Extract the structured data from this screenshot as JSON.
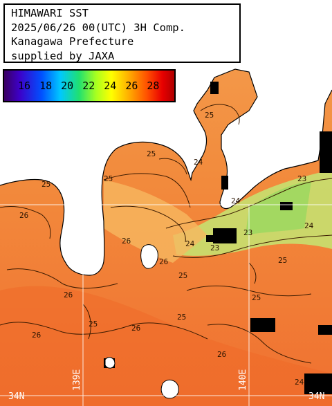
{
  "title": {
    "line1": "HIMAWARI SST",
    "line2": "2025/06/26 00(UTC) 3H Comp.",
    "line3": "Kanagawa Prefecture",
    "line4": "supplied by JAXA"
  },
  "color_scale": {
    "ticks": [
      "16",
      "18",
      "20",
      "22",
      "24",
      "26",
      "28"
    ],
    "colors": [
      "#3a0060",
      "#3d00c8",
      "#0050ff",
      "#00c8ff",
      "#20e070",
      "#a8ff20",
      "#ffff00",
      "#ffb000",
      "#ff5000",
      "#e80000",
      "#b00000"
    ]
  },
  "graticule": {
    "lat_left": "34N",
    "lat_right": "34N",
    "lon_left": "139E",
    "lon_right": "140E"
  },
  "contour_labels": [
    "25",
    "26",
    "25",
    "25",
    "26",
    "26",
    "25",
    "26",
    "25",
    "25",
    "26",
    "23",
    "24",
    "23",
    "24",
    "23",
    "24",
    "24",
    "25",
    "26",
    "25",
    "26",
    "25",
    "24"
  ],
  "colors": {
    "land": "#ffffff",
    "sea_warm": "#f07a30",
    "sea_mid": "#f4a050",
    "sea_cool": "#b8e060",
    "cloud_mask": "#000000"
  }
}
